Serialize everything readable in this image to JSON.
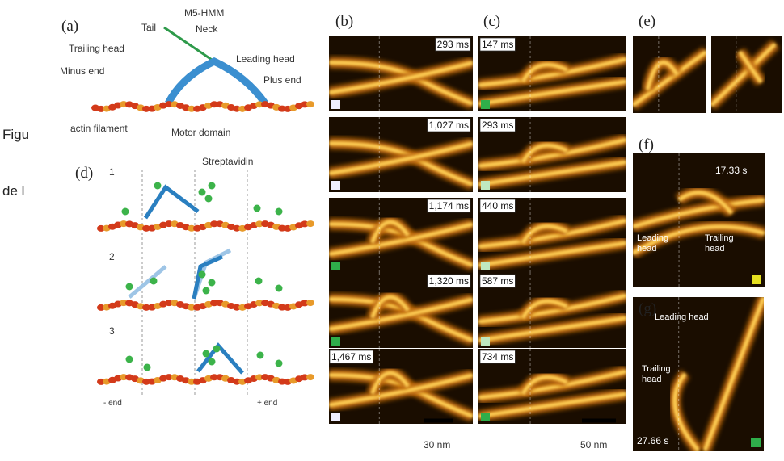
{
  "background_text": [
    "Figu",
    "de l"
  ],
  "panel_a": {
    "label": "(a)",
    "construct": "M5-HMM",
    "tail": "Tail",
    "neck": "Neck",
    "trailing_head": "Trailing head",
    "leading_head": "Leading head",
    "minus_end": "Minus end",
    "plus_end": "Plus end",
    "actin": "actin filament",
    "motor": "Motor domain"
  },
  "panel_d": {
    "label": "(d)",
    "streptavidin": "Streptavidin",
    "steps": [
      "1",
      "2",
      "3"
    ],
    "minus": "- end",
    "plus": "+ end"
  },
  "panel_b": {
    "label": "(b)",
    "frames": [
      "293 ms",
      "1,027 ms",
      "1,174 ms",
      "1,320 ms",
      "1,467 ms"
    ],
    "scale": "30 nm"
  },
  "panel_c": {
    "label": "(c)",
    "frames": [
      "147 ms",
      "293 ms",
      "440 ms",
      "587 ms",
      "734 ms"
    ],
    "scale": "50 nm"
  },
  "panel_e": {
    "label": "(e)"
  },
  "panel_f": {
    "label": "(f)",
    "time": "17.33 s",
    "leading": [
      "Leading",
      "head"
    ],
    "trailing": [
      "Trailing",
      "head"
    ]
  },
  "panel_g": {
    "label": "(g)",
    "time": "27.66 s",
    "leading": [
      "Leading head"
    ],
    "trailing": [
      "Trailing",
      "head"
    ]
  }
}
